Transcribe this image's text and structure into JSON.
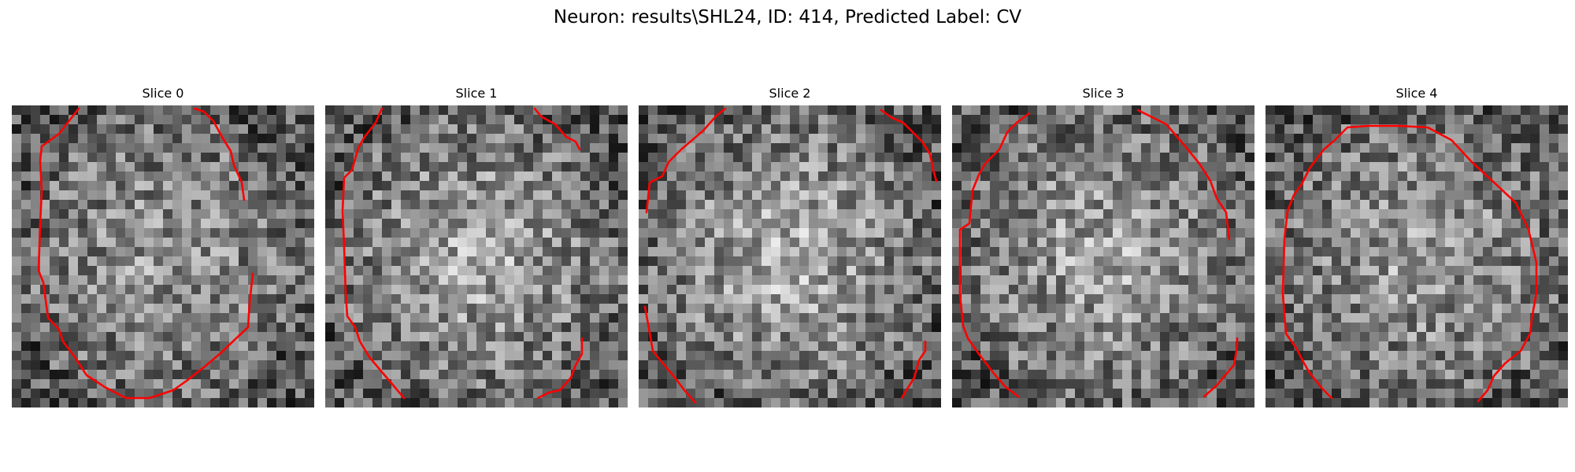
{
  "figure": {
    "title": "Neuron: results\\SHL24, ID: 414, Predicted Label: CV",
    "contour_color": "#ff0000",
    "colormap": "gray",
    "slices": [
      {
        "label": "Slice 0",
        "seed": 11,
        "bright_blob": 0.35
      },
      {
        "label": "Slice 1",
        "seed": 23,
        "bright_blob": 0.55
      },
      {
        "label": "Slice 2",
        "seed": 37,
        "bright_blob": 0.6
      },
      {
        "label": "Slice 3",
        "seed": 41,
        "bright_blob": 0.5
      },
      {
        "label": "Slice 4",
        "seed": 53,
        "bright_blob": 0.45
      }
    ]
  }
}
